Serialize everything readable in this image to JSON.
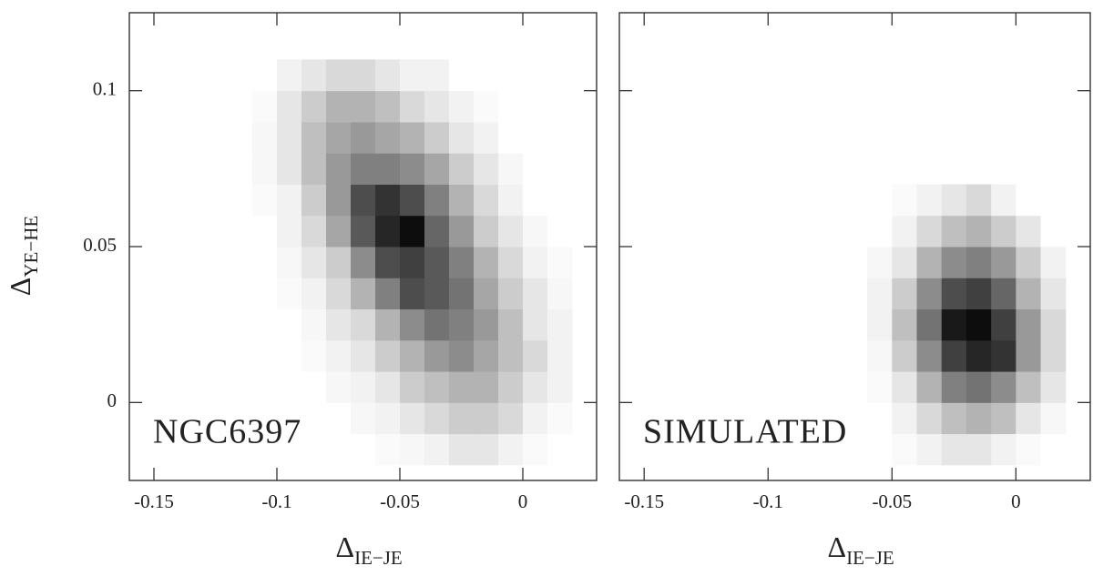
{
  "chart_data": [
    {
      "type": "heatmap",
      "annotation": "NGC6397",
      "xlabel": "Δ",
      "xlabel_sub": "IE−JE",
      "ylabel": "Δ",
      "ylabel_sub": "YE−HE",
      "xlim": [
        -0.16,
        0.03
      ],
      "ylim": [
        -0.025,
        0.125
      ],
      "xticks": [
        -0.15,
        -0.1,
        -0.05,
        0
      ],
      "yticks": [
        0,
        0.05,
        0.1
      ],
      "x_bins": [
        -0.12,
        -0.11,
        -0.1,
        -0.09,
        -0.08,
        -0.07,
        -0.06,
        -0.05,
        -0.04,
        -0.03,
        -0.02,
        -0.01,
        0,
        0.01,
        0.02
      ],
      "y_bins": [
        -0.02,
        -0.01,
        0,
        0.01,
        0.02,
        0.03,
        0.04,
        0.05,
        0.06,
        0.07,
        0.08,
        0.09,
        0.1,
        0.11
      ],
      "z": [
        [
          0,
          0,
          0,
          0,
          0,
          0,
          0.02,
          0.03,
          0.05,
          0.1,
          0.1,
          0.05,
          0.02,
          0
        ],
        [
          0,
          0,
          0,
          0,
          0,
          0.03,
          0.05,
          0.1,
          0.15,
          0.2,
          0.2,
          0.15,
          0.05,
          0.02
        ],
        [
          0,
          0,
          0,
          0,
          0.03,
          0.05,
          0.1,
          0.2,
          0.25,
          0.3,
          0.3,
          0.2,
          0.1,
          0.05
        ],
        [
          0,
          0,
          0,
          0.02,
          0.05,
          0.1,
          0.2,
          0.3,
          0.4,
          0.45,
          0.35,
          0.25,
          0.15,
          0.05
        ],
        [
          0,
          0,
          0,
          0.03,
          0.1,
          0.15,
          0.3,
          0.45,
          0.55,
          0.5,
          0.4,
          0.25,
          0.1,
          0.05
        ],
        [
          0,
          0,
          0.02,
          0.05,
          0.15,
          0.3,
          0.5,
          0.7,
          0.65,
          0.55,
          0.35,
          0.2,
          0.1,
          0.03
        ],
        [
          0,
          0,
          0.03,
          0.1,
          0.2,
          0.45,
          0.7,
          0.75,
          0.65,
          0.5,
          0.3,
          0.15,
          0.05,
          0.02
        ],
        [
          0,
          0,
          0.05,
          0.15,
          0.35,
          0.65,
          0.85,
          0.95,
          0.6,
          0.4,
          0.2,
          0.1,
          0.03,
          0
        ],
        [
          0,
          0.02,
          0.05,
          0.2,
          0.4,
          0.7,
          0.8,
          0.7,
          0.5,
          0.3,
          0.15,
          0.05,
          0,
          0
        ],
        [
          0,
          0.03,
          0.1,
          0.25,
          0.4,
          0.5,
          0.5,
          0.45,
          0.35,
          0.2,
          0.1,
          0.03,
          0,
          0
        ],
        [
          0,
          0.03,
          0.1,
          0.25,
          0.35,
          0.4,
          0.35,
          0.3,
          0.2,
          0.1,
          0.05,
          0,
          0,
          0
        ],
        [
          0,
          0.02,
          0.1,
          0.2,
          0.3,
          0.3,
          0.25,
          0.15,
          0.1,
          0.05,
          0.02,
          0,
          0,
          0
        ],
        [
          0,
          0,
          0.05,
          0.1,
          0.15,
          0.15,
          0.1,
          0.05,
          0.05,
          0,
          0,
          0,
          0,
          0
        ]
      ]
    },
    {
      "type": "heatmap",
      "annotation": "SIMULATED",
      "xlabel": "Δ",
      "xlabel_sub": "IE−JE",
      "xlim": [
        -0.16,
        0.03
      ],
      "ylim": [
        -0.025,
        0.125
      ],
      "xticks": [
        -0.15,
        -0.1,
        -0.05,
        0
      ],
      "yticks": [
        0,
        0.05,
        0.1
      ],
      "ytick_labels": false,
      "x_bins": [
        -0.06,
        -0.05,
        -0.04,
        -0.03,
        -0.02,
        -0.01,
        0,
        0.01,
        0.02
      ],
      "y_bins": [
        -0.02,
        -0.01,
        0,
        0.01,
        0.02,
        0.03,
        0.04,
        0.05,
        0.06,
        0.07
      ],
      "z": [
        [
          0,
          0.02,
          0.05,
          0.1,
          0.1,
          0.05,
          0.02,
          0
        ],
        [
          0,
          0.05,
          0.15,
          0.25,
          0.3,
          0.25,
          0.1,
          0.03
        ],
        [
          0.02,
          0.1,
          0.3,
          0.5,
          0.55,
          0.45,
          0.25,
          0.1
        ],
        [
          0.03,
          0.2,
          0.45,
          0.75,
          0.85,
          0.8,
          0.4,
          0.15
        ],
        [
          0.05,
          0.25,
          0.55,
          0.9,
          0.95,
          0.75,
          0.4,
          0.15
        ],
        [
          0.05,
          0.2,
          0.45,
          0.7,
          0.75,
          0.6,
          0.3,
          0.1
        ],
        [
          0.03,
          0.1,
          0.3,
          0.45,
          0.5,
          0.4,
          0.2,
          0.05
        ],
        [
          0,
          0.05,
          0.15,
          0.25,
          0.3,
          0.2,
          0.1,
          0
        ],
        [
          0,
          0.02,
          0.05,
          0.1,
          0.15,
          0.05,
          0,
          0
        ]
      ]
    }
  ]
}
